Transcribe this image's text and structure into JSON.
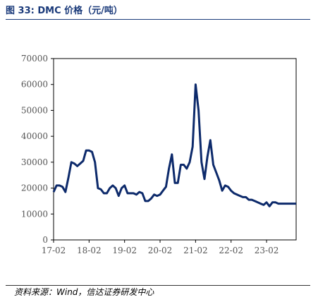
{
  "header": {
    "title": "图 33:  DMC 价格（元/吨）"
  },
  "footer": {
    "source": "资料来源：Wind，信达证券研发中心"
  },
  "colors": {
    "line": "#0d2a6b",
    "title": "#1a3a7a"
  },
  "chart_data": {
    "type": "line",
    "title": "DMC 价格（元/吨）",
    "xlabel": "",
    "ylabel": "",
    "ylim": [
      0,
      70000
    ],
    "y_ticks": [
      0,
      10000,
      20000,
      30000,
      40000,
      50000,
      60000,
      70000
    ],
    "x_ticks": [
      "17-02",
      "18-02",
      "19-02",
      "20-02",
      "21-02",
      "22-02",
      "23-02"
    ],
    "x_range": [
      "2017-02",
      "2023-12"
    ],
    "grid": false,
    "legend": "none",
    "series": [
      {
        "x": [
          "2017-02",
          "2017-03",
          "2017-04",
          "2017-05",
          "2017-06",
          "2017-07",
          "2017-08",
          "2017-09",
          "2017-10",
          "2017-11",
          "2017-12",
          "2018-01",
          "2018-02",
          "2018-03",
          "2018-04",
          "2018-05",
          "2018-06",
          "2018-07",
          "2018-08",
          "2018-09",
          "2018-10",
          "2018-11",
          "2018-12",
          "2019-01",
          "2019-02",
          "2019-03",
          "2019-04",
          "2019-05",
          "2019-06",
          "2019-07",
          "2019-08",
          "2019-09",
          "2019-10",
          "2019-11",
          "2019-12",
          "2020-01",
          "2020-02",
          "2020-03",
          "2020-04",
          "2020-05",
          "2020-06",
          "2020-07",
          "2020-08",
          "2020-09",
          "2020-10",
          "2020-11",
          "2020-12",
          "2021-01",
          "2021-02",
          "2021-03",
          "2021-04",
          "2021-05",
          "2021-06",
          "2021-07",
          "2021-08",
          "2021-09",
          "2021-10",
          "2021-11",
          "2021-12",
          "2022-01",
          "2022-02",
          "2022-03",
          "2022-04",
          "2022-05",
          "2022-06",
          "2022-07",
          "2022-08",
          "2022-09",
          "2022-10",
          "2022-11",
          "2022-12",
          "2023-01",
          "2023-02",
          "2023-03",
          "2023-04",
          "2023-05",
          "2023-06",
          "2023-07",
          "2023-08",
          "2023-09",
          "2023-10",
          "2023-11",
          "2023-12"
        ],
        "values": [
          18500,
          21000,
          21000,
          20500,
          18500,
          24000,
          30000,
          29500,
          28500,
          29500,
          30500,
          34500,
          34500,
          34000,
          30000,
          20000,
          19500,
          18000,
          18000,
          20000,
          21000,
          20000,
          17000,
          20000,
          21000,
          18000,
          18000,
          18000,
          17500,
          18500,
          18000,
          15000,
          15000,
          16000,
          17500,
          17000,
          17500,
          19000,
          20500,
          27500,
          33000,
          22000,
          22000,
          29000,
          29000,
          27500,
          30000,
          36000,
          60000,
          50000,
          30000,
          23500,
          32000,
          38500,
          29000,
          26000,
          23000,
          19000,
          21000,
          20500,
          19000,
          18000,
          17500,
          17000,
          16500,
          16500,
          15500,
          15500,
          15000,
          14500,
          14000,
          13500,
          14500,
          13000,
          14500,
          14500,
          14000,
          14000,
          14000,
          14000,
          14000,
          14000,
          14000
        ]
      }
    ]
  }
}
